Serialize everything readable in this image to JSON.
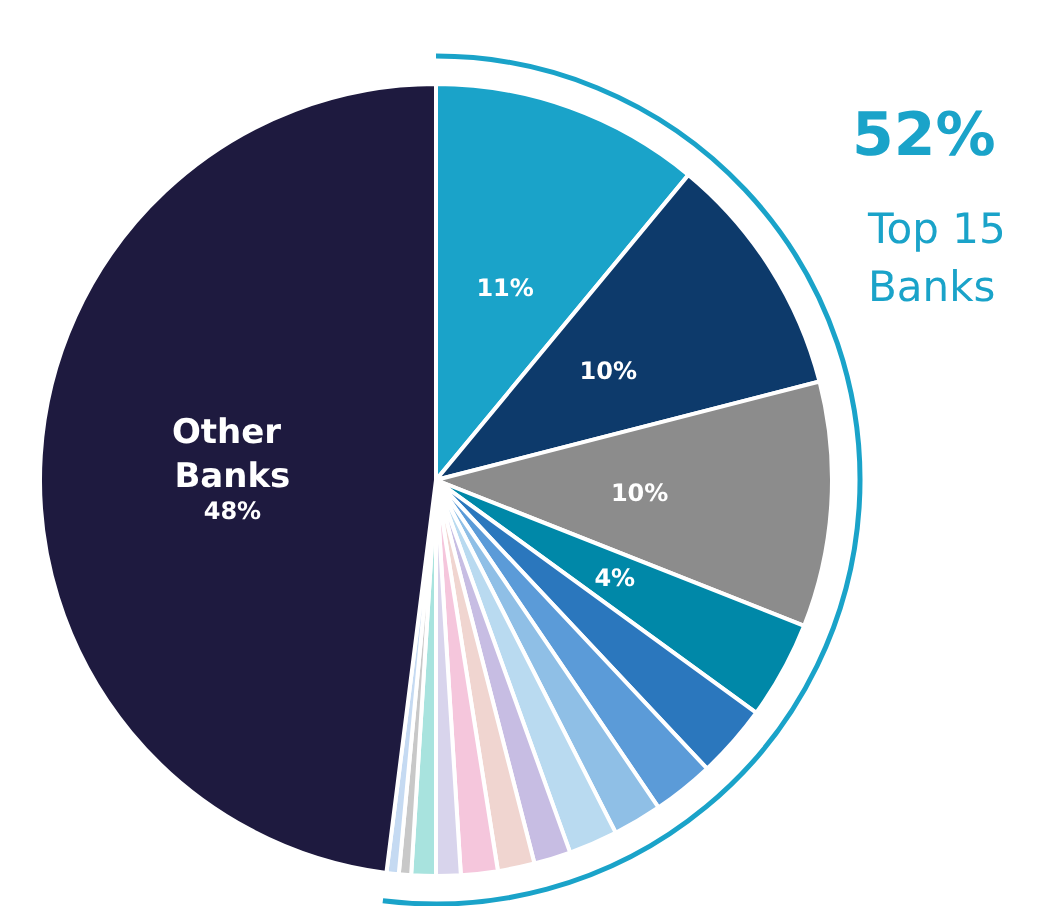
{
  "chart_data": {
    "type": "pie",
    "categories": [
      null,
      null,
      null,
      null,
      null,
      null,
      null,
      null,
      null,
      null,
      null,
      null,
      null,
      null,
      null,
      "Other Banks"
    ],
    "values": [
      11,
      10,
      10,
      4,
      3,
      2.5,
      2,
      2,
      1.5,
      1.5,
      1.5,
      1,
      1,
      0.5,
      0.5,
      48
    ],
    "colors": [
      "#1aa3c9",
      "#0d3a6b",
      "#8c8c8c",
      "#0088a8",
      "#2b77bd",
      "#5b9bd8",
      "#8fbfe6",
      "#b9daf0",
      "#c7bde3",
      "#f0d5d0",
      "#f5c6dc",
      "#d8d4ec",
      "#a8e3de",
      "#c8c8c8",
      "#c5daf2",
      "#1e1a3f"
    ],
    "value_labels": [
      "11%",
      "10%",
      "10%",
      "4%",
      null,
      null,
      null,
      null,
      null,
      null,
      null,
      null,
      null,
      null,
      null,
      "48%"
    ],
    "annotations": [
      "52%",
      "Top 15 Banks"
    ]
  }
}
